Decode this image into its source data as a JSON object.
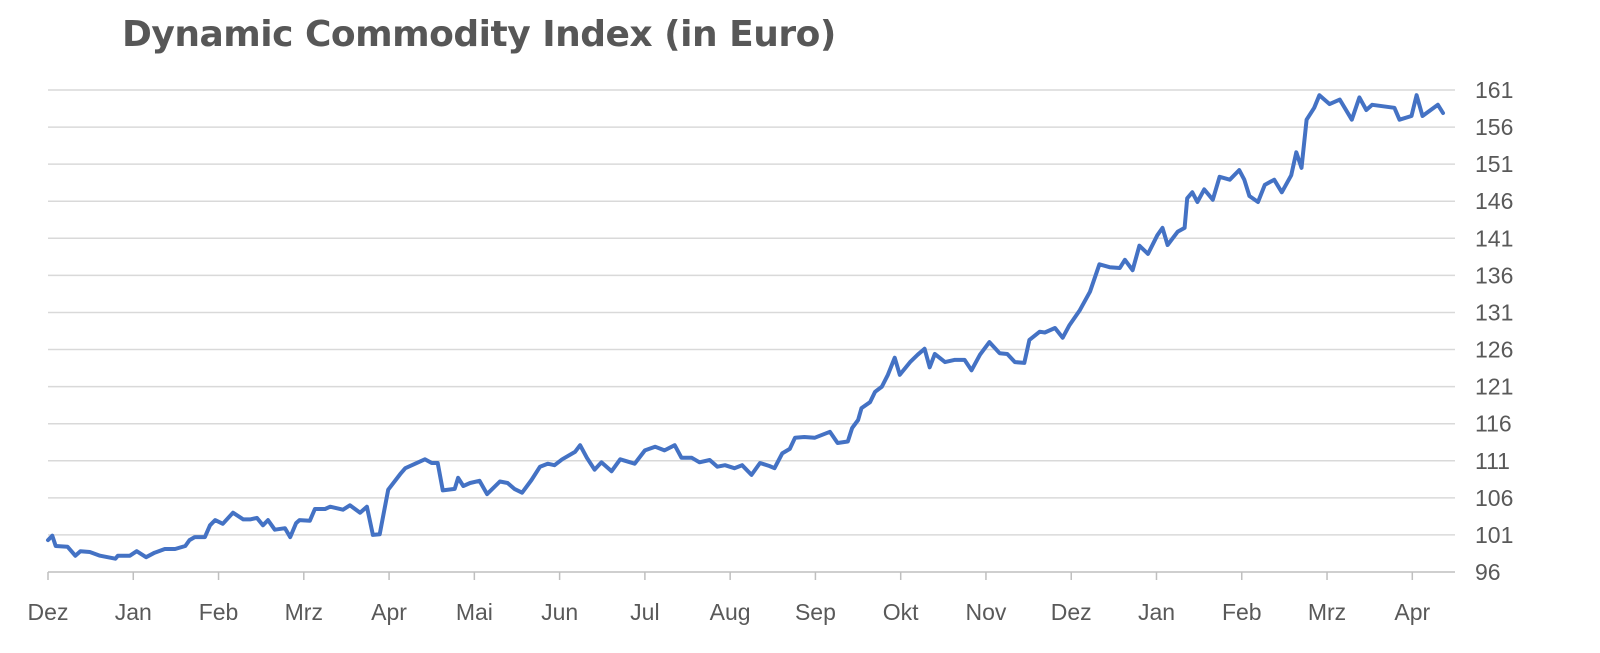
{
  "chart_data": {
    "type": "line",
    "title": "Dynamic Commodity Index (in Euro)",
    "xlabel": "",
    "ylabel": "",
    "x_unit": "months since start (Dez)",
    "xlim": [
      0,
      16.36
    ],
    "ylim": [
      96,
      161
    ],
    "grid": true,
    "legend": "none",
    "x_tick_labels": [
      "Dez",
      "Jan",
      "Feb",
      "Mrz",
      "Apr",
      "Mai",
      "Jun",
      "Jul",
      "Aug",
      "Sep",
      "Okt",
      "Nov",
      "Dez",
      "Jan",
      "Feb",
      "Mrz",
      "Apr"
    ],
    "y_ticks": [
      96,
      101,
      106,
      111,
      116,
      121,
      126,
      131,
      136,
      141,
      146,
      151,
      156,
      161
    ],
    "series": [
      {
        "name": "Dynamic Commodity Index",
        "color": "#4472C4",
        "x": [
          0,
          0.05,
          0.09,
          0.23,
          0.32,
          0.38,
          0.49,
          0.61,
          0.79,
          0.82,
          0.96,
          1.04,
          1.15,
          1.25,
          1.37,
          1.49,
          1.61,
          1.66,
          1.72,
          1.84,
          1.9,
          1.96,
          2.05,
          2.17,
          2.29,
          2.37,
          2.45,
          2.52,
          2.58,
          2.66,
          2.78,
          2.84,
          2.91,
          2.95,
          3.07,
          3.13,
          3.25,
          3.31,
          3.46,
          3.54,
          3.66,
          3.74,
          3.81,
          3.89,
          3.99,
          4.13,
          4.19,
          4.42,
          4.5,
          4.57,
          4.63,
          4.77,
          4.81,
          4.87,
          4.95,
          5.06,
          5.15,
          5.3,
          5.39,
          5.47,
          5.56,
          5.67,
          5.77,
          5.86,
          5.94,
          6.03,
          6.18,
          6.24,
          6.32,
          6.41,
          6.49,
          6.61,
          6.71,
          6.88,
          7.0,
          7.12,
          7.23,
          7.35,
          7.43,
          7.55,
          7.64,
          7.76,
          7.85,
          7.94,
          8.05,
          8.14,
          8.25,
          8.35,
          8.46,
          8.52,
          8.61,
          8.7,
          8.76,
          8.87,
          8.99,
          9.17,
          9.26,
          9.38,
          9.43,
          9.5,
          9.54,
          9.64,
          9.7,
          9.78,
          9.85,
          9.93,
          9.99,
          10.11,
          10.2,
          10.28,
          10.34,
          10.4,
          10.52,
          10.63,
          10.75,
          10.83,
          10.93,
          11.04,
          11.16,
          11.25,
          11.34,
          11.45,
          11.51,
          11.63,
          11.69,
          11.81,
          11.9,
          11.98,
          12.1,
          12.22,
          12.33,
          12.45,
          12.57,
          12.63,
          12.72,
          12.8,
          12.9,
          13.01,
          13.07,
          13.13,
          13.25,
          13.33,
          13.36,
          13.42,
          13.48,
          13.56,
          13.66,
          13.74,
          13.86,
          13.97,
          14.03,
          14.09,
          14.19,
          14.27,
          14.38,
          14.47,
          14.58,
          14.64,
          14.7,
          14.76,
          14.85,
          14.91,
          15.03,
          15.15,
          15.29,
          15.38,
          15.46,
          15.53,
          15.79,
          15.85,
          15.99,
          16.05,
          16.12,
          16.3,
          16.36
        ],
        "y": [
          100.3,
          100.9,
          99.5,
          99.4,
          98.2,
          98.8,
          98.7,
          98.2,
          97.8,
          98.2,
          98.2,
          98.8,
          98.0,
          98.6,
          99.1,
          99.1,
          99.5,
          100.3,
          100.7,
          100.7,
          102.3,
          103.0,
          102.5,
          104.0,
          103.1,
          103.1,
          103.3,
          102.3,
          103.0,
          101.7,
          101.9,
          100.7,
          102.6,
          103.0,
          102.9,
          104.5,
          104.5,
          104.8,
          104.4,
          105.0,
          104.0,
          104.8,
          101.0,
          101.1,
          107.1,
          109.2,
          110.0,
          111.2,
          110.7,
          110.7,
          107.0,
          107.2,
          108.7,
          107.6,
          108.0,
          108.3,
          106.5,
          108.2,
          108.0,
          107.2,
          106.7,
          108.4,
          110.2,
          110.6,
          110.4,
          111.2,
          112.2,
          113.1,
          111.4,
          109.8,
          110.8,
          109.6,
          111.2,
          110.6,
          112.4,
          112.9,
          112.4,
          113.1,
          111.4,
          111.4,
          110.8,
          111.1,
          110.2,
          110.4,
          110.0,
          110.4,
          109.1,
          110.7,
          110.3,
          110.0,
          112.0,
          112.6,
          114.1,
          114.2,
          114.1,
          114.9,
          113.4,
          113.6,
          115.4,
          116.5,
          118.1,
          118.9,
          120.3,
          121.0,
          122.6,
          124.9,
          122.6,
          124.3,
          125.3,
          126.1,
          123.6,
          125.4,
          124.3,
          124.6,
          124.6,
          123.2,
          125.3,
          127.0,
          125.5,
          125.4,
          124.3,
          124.2,
          127.3,
          128.4,
          128.3,
          128.9,
          127.6,
          129.3,
          131.3,
          133.8,
          137.5,
          137.1,
          137.0,
          138.1,
          136.7,
          140.0,
          138.9,
          141.4,
          142.4,
          140.1,
          141.9,
          142.4,
          146.4,
          147.2,
          145.9,
          147.6,
          146.2,
          149.3,
          148.9,
          150.2,
          148.9,
          146.7,
          145.9,
          148.2,
          148.9,
          147.2,
          149.5,
          152.6,
          150.5,
          157.0,
          158.6,
          160.3,
          159.1,
          159.7,
          157.0,
          160.0,
          158.3,
          159.0,
          158.6,
          157.0,
          157.5,
          160.3,
          157.5,
          159.0,
          157.9
        ]
      }
    ]
  }
}
